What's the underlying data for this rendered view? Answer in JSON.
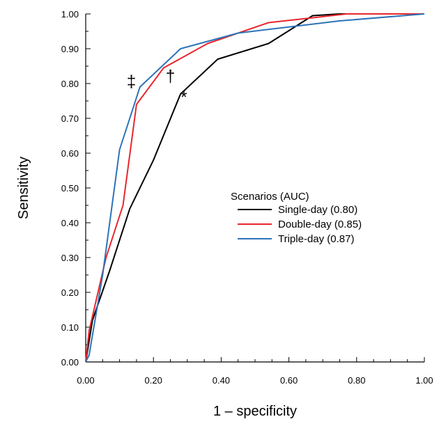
{
  "chart_data": {
    "type": "line",
    "xlabel": "1 – specificity",
    "ylabel": "Sensitivity",
    "xlim": [
      0,
      1
    ],
    "ylim": [
      0,
      1
    ],
    "x_ticks": [
      "0.00",
      "0.20",
      "0.40",
      "0.60",
      "0.80",
      "1.00"
    ],
    "y_ticks": [
      "0.00",
      "0.10",
      "0.20",
      "0.30",
      "0.40",
      "0.50",
      "0.60",
      "0.70",
      "0.80",
      "0.90",
      "1.00"
    ],
    "grid": false,
    "legend": {
      "title": "Scenarios (AUC)",
      "position": "center-right"
    },
    "series": [
      {
        "name": "Single-day (0.80)",
        "color": "#000000",
        "x": [
          0,
          0.02,
          0.07,
          0.13,
          0.2,
          0.28,
          0.39,
          0.54,
          0.67,
          0.75,
          1.0
        ],
        "y": [
          0,
          0.12,
          0.26,
          0.44,
          0.58,
          0.77,
          0.87,
          0.915,
          0.995,
          1.0,
          1.0
        ]
      },
      {
        "name": "Double-day (0.85)",
        "color": "#e8262d",
        "x": [
          0,
          0.01,
          0.06,
          0.11,
          0.15,
          0.23,
          0.36,
          0.54,
          0.68,
          0.77,
          1.0
        ],
        "y": [
          0,
          0.09,
          0.3,
          0.45,
          0.74,
          0.845,
          0.915,
          0.975,
          0.99,
          1.0,
          1.0
        ]
      },
      {
        "name": "Triple-day (0.87)",
        "color": "#2c73b8",
        "x": [
          0,
          0.01,
          0.05,
          0.1,
          0.16,
          0.28,
          0.45,
          0.75,
          1.0
        ],
        "y": [
          0,
          0.02,
          0.25,
          0.61,
          0.79,
          0.9,
          0.945,
          0.98,
          1.0
        ]
      }
    ],
    "annotations": [
      {
        "text": "‡",
        "x": 0.135,
        "y": 0.79
      },
      {
        "text": "†",
        "x": 0.25,
        "y": 0.805
      },
      {
        "text": "*",
        "x": 0.29,
        "y": 0.745
      }
    ]
  }
}
